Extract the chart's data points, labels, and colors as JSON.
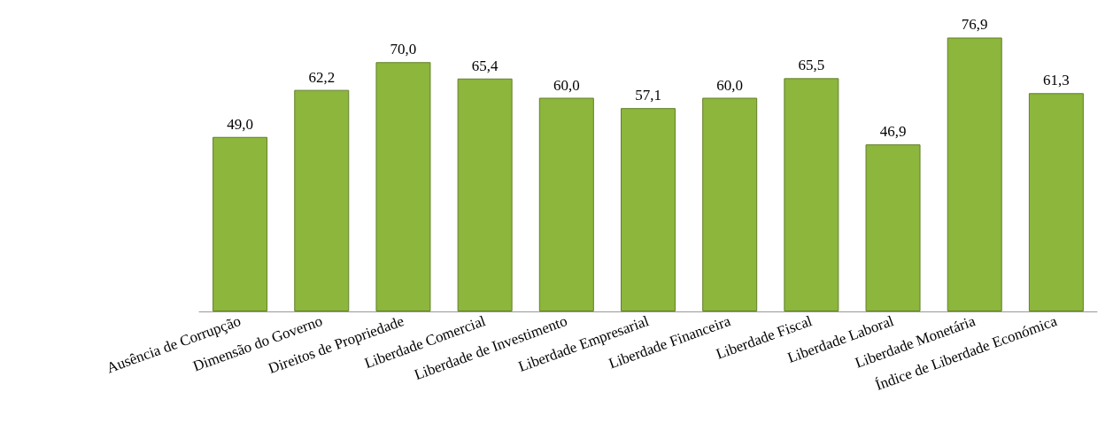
{
  "chart_data": {
    "type": "bar",
    "categories": [
      "Ausência de Corrupção",
      "Dimensão do Governo",
      "Direitos de Propriedade",
      "Liberdade Comercial",
      "Liberdade de Investimento",
      "Liberdade Empresarial",
      "Liberdade Financeira",
      "Liberdade Fiscal",
      "Liberdade Laboral",
      "Liberdade Monetária",
      "Índice de Liberdade Económica"
    ],
    "values": [
      49.0,
      62.2,
      70.0,
      65.4,
      60.0,
      57.1,
      60.0,
      65.5,
      46.9,
      76.9,
      61.3
    ],
    "value_labels": [
      "49,0",
      "62,2",
      "70,0",
      "65,4",
      "60,0",
      "57,1",
      "60,0",
      "65,5",
      "46,9",
      "76,9",
      "61,3"
    ],
    "color": "#8cb63c"
  }
}
